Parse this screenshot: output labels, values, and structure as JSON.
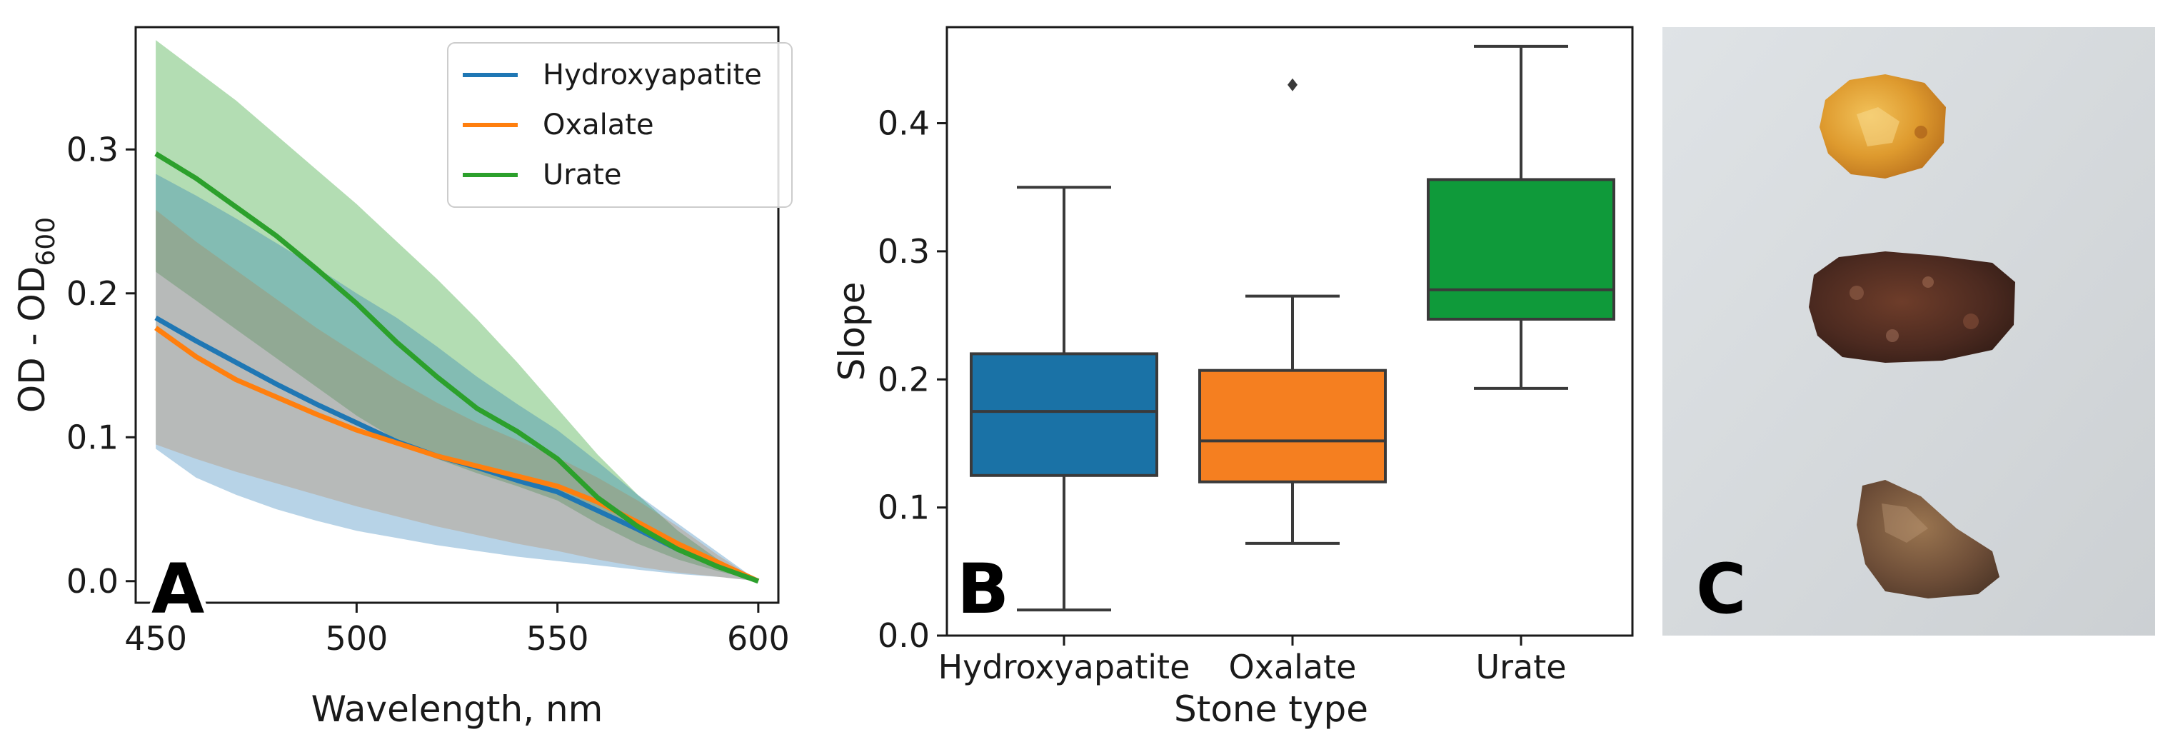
{
  "colors": {
    "hydroxyapatite": "#1f77b4",
    "oxalate": "#ff7f0e",
    "urate": "#2ca02c",
    "box_hydroxyapatite": "#1a72a6",
    "box_oxalate": "#f57f20",
    "box_urate": "#0f9a3a",
    "photo_background": "#d6dadd"
  },
  "chart_data": [
    {
      "panel": "A",
      "type": "line",
      "title": "",
      "xlabel": "Wavelength, nm",
      "ylabel_main": "OD - OD",
      "ylabel_sub": "600",
      "xlim": [
        445,
        605
      ],
      "ylim": [
        -0.015,
        0.385
      ],
      "xticks": [
        450,
        500,
        550,
        600
      ],
      "yticks": [
        0.0,
        0.1,
        0.2,
        0.3
      ],
      "ytick_labels": [
        "0.0",
        "0.1",
        "0.2",
        "0.3"
      ],
      "legend": {
        "placement": "top-right",
        "entries": [
          "Hydroxyapatite",
          "Oxalate",
          "Urate"
        ]
      },
      "x": [
        450,
        460,
        470,
        480,
        490,
        500,
        510,
        520,
        530,
        540,
        550,
        560,
        570,
        580,
        590,
        600
      ],
      "series": [
        {
          "name": "Hydroxyapatite",
          "color_key": "hydroxyapatite",
          "mean": [
            0.183,
            0.167,
            0.152,
            0.137,
            0.123,
            0.11,
            0.097,
            0.087,
            0.079,
            0.07,
            0.062,
            0.049,
            0.036,
            0.022,
            0.011,
            0.0
          ],
          "lower": [
            0.092,
            0.072,
            0.06,
            0.05,
            0.042,
            0.035,
            0.03,
            0.025,
            0.021,
            0.017,
            0.014,
            0.011,
            0.008,
            0.005,
            0.003,
            0.0
          ],
          "upper": [
            0.283,
            0.268,
            0.252,
            0.235,
            0.218,
            0.2,
            0.183,
            0.163,
            0.142,
            0.123,
            0.105,
            0.083,
            0.06,
            0.04,
            0.02,
            0.0
          ]
        },
        {
          "name": "Oxalate",
          "color_key": "oxalate",
          "mean": [
            0.176,
            0.156,
            0.14,
            0.128,
            0.116,
            0.105,
            0.096,
            0.087,
            0.08,
            0.073,
            0.066,
            0.055,
            0.041,
            0.026,
            0.013,
            0.0
          ],
          "lower": [
            0.095,
            0.085,
            0.076,
            0.068,
            0.06,
            0.052,
            0.045,
            0.038,
            0.032,
            0.026,
            0.021,
            0.015,
            0.01,
            0.006,
            0.003,
            0.0
          ],
          "upper": [
            0.258,
            0.236,
            0.216,
            0.196,
            0.176,
            0.158,
            0.14,
            0.124,
            0.11,
            0.098,
            0.086,
            0.072,
            0.056,
            0.038,
            0.018,
            0.0
          ]
        },
        {
          "name": "Urate",
          "color_key": "urate",
          "mean": [
            0.297,
            0.28,
            0.26,
            0.24,
            0.217,
            0.193,
            0.166,
            0.142,
            0.12,
            0.104,
            0.085,
            0.058,
            0.038,
            0.022,
            0.01,
            0.0
          ],
          "lower": [
            0.215,
            0.195,
            0.175,
            0.155,
            0.135,
            0.115,
            0.098,
            0.085,
            0.075,
            0.066,
            0.056,
            0.04,
            0.026,
            0.015,
            0.007,
            0.0
          ],
          "upper": [
            0.376,
            0.355,
            0.334,
            0.31,
            0.286,
            0.262,
            0.236,
            0.21,
            0.182,
            0.152,
            0.12,
            0.088,
            0.06,
            0.035,
            0.015,
            0.0
          ]
        }
      ]
    },
    {
      "panel": "B",
      "type": "box",
      "title": "",
      "xlabel": "Stone type",
      "ylabel": "Slope",
      "ylim": [
        0.0,
        0.475
      ],
      "yticks": [
        0.0,
        0.1,
        0.2,
        0.3,
        0.4
      ],
      "ytick_labels": [
        "0.0",
        "0.1",
        "0.2",
        "0.3",
        "0.4"
      ],
      "categories": [
        "Hydroxyapatite",
        "Oxalate",
        "Urate"
      ],
      "boxes": [
        {
          "name": "Hydroxyapatite",
          "color_key": "box_hydroxyapatite",
          "whisker_low": 0.02,
          "q1": 0.125,
          "median": 0.175,
          "q3": 0.22,
          "whisker_high": 0.35,
          "outliers": []
        },
        {
          "name": "Oxalate",
          "color_key": "box_oxalate",
          "whisker_low": 0.072,
          "q1": 0.12,
          "median": 0.152,
          "q3": 0.207,
          "whisker_high": 0.265,
          "outliers": [
            0.43
          ]
        },
        {
          "name": "Urate",
          "color_key": "box_urate",
          "whisker_low": 0.193,
          "q1": 0.247,
          "median": 0.27,
          "q3": 0.356,
          "whisker_high": 0.46,
          "outliers": []
        }
      ]
    }
  ],
  "panels": {
    "a_label": "A",
    "b_label": "B",
    "c_label": "C"
  },
  "photo": {
    "stones": [
      "hydroxyapatite-stone",
      "oxalate-stone",
      "urate-stone"
    ]
  }
}
